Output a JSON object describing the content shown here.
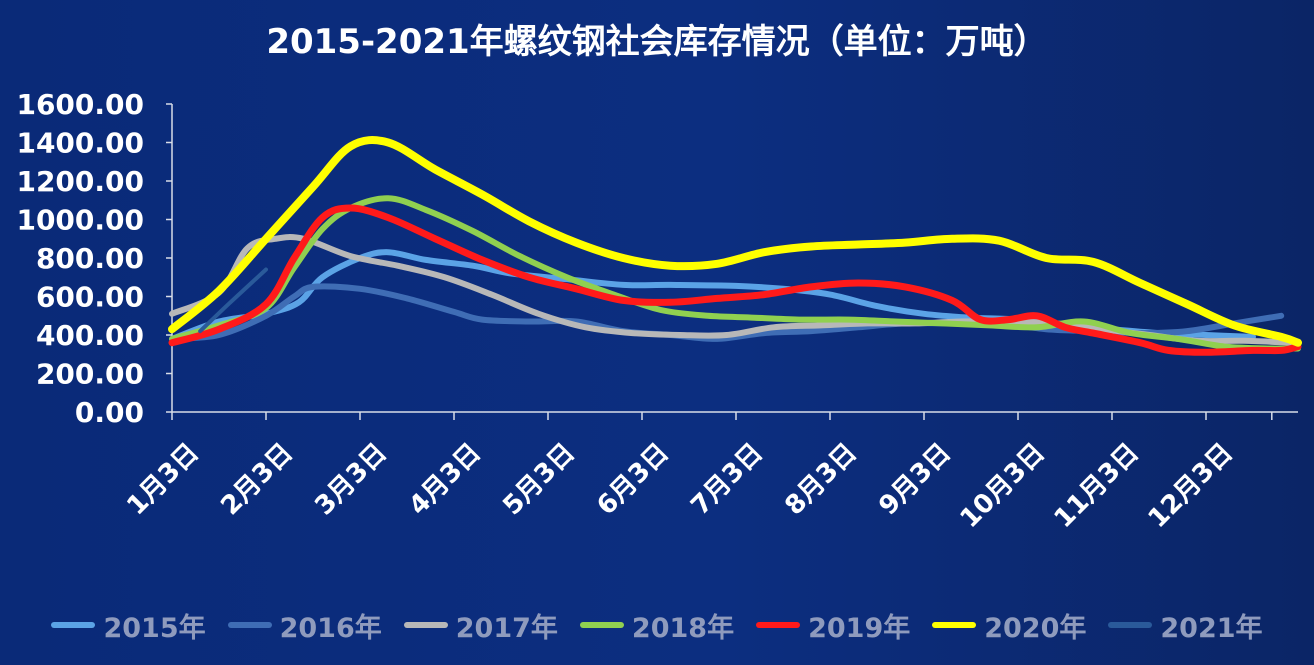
{
  "chart_data": {
    "type": "line",
    "title": "2015-2021年螺纹钢社会库存情况（单位：万吨）",
    "xlabel": "",
    "ylabel": "",
    "ylim": [
      0,
      1600
    ],
    "yticks": [
      "0.00",
      "200.00",
      "400.00",
      "600.00",
      "800.00",
      "1000.00",
      "1200.00",
      "1400.00",
      "1600.00"
    ],
    "categories": [
      "1月3日",
      "2月3日",
      "3月3日",
      "4月3日",
      "5月3日",
      "6月3日",
      "7月3日",
      "8月3日",
      "9月3日",
      "10月3日",
      "11月3日",
      "12月3日"
    ],
    "grid": false,
    "legend": "bottom",
    "series": [
      {
        "name": "2015年",
        "color": "#5ba3e6",
        "width": 6,
        "points": [
          [
            0,
            380
          ],
          [
            0.5,
            470
          ],
          [
            1.0,
            510
          ],
          [
            1.35,
            570
          ],
          [
            1.6,
            700
          ],
          [
            2.0,
            800
          ],
          [
            2.3,
            830
          ],
          [
            2.7,
            790
          ],
          [
            3.2,
            760
          ],
          [
            3.6,
            720
          ],
          [
            4.2,
            690
          ],
          [
            4.8,
            660
          ],
          [
            5.3,
            660
          ],
          [
            6.0,
            655
          ],
          [
            6.5,
            640
          ],
          [
            7.0,
            610
          ],
          [
            7.5,
            550
          ],
          [
            8.0,
            510
          ],
          [
            8.5,
            490
          ],
          [
            9.0,
            480
          ],
          [
            9.5,
            450
          ],
          [
            10.0,
            430
          ],
          [
            10.5,
            410
          ],
          [
            11.0,
            400
          ],
          [
            11.5,
            390
          ]
        ]
      },
      {
        "name": "2016年",
        "color": "#3f6db5",
        "width": 6,
        "points": [
          [
            0,
            380
          ],
          [
            0.5,
            400
          ],
          [
            1.0,
            500
          ],
          [
            1.3,
            600
          ],
          [
            1.5,
            650
          ],
          [
            2.0,
            640
          ],
          [
            2.5,
            590
          ],
          [
            3.0,
            520
          ],
          [
            3.3,
            480
          ],
          [
            3.8,
            470
          ],
          [
            4.3,
            470
          ],
          [
            4.8,
            420
          ],
          [
            5.3,
            400
          ],
          [
            5.8,
            380
          ],
          [
            6.3,
            410
          ],
          [
            6.8,
            420
          ],
          [
            7.3,
            440
          ],
          [
            7.8,
            460
          ],
          [
            8.3,
            460
          ],
          [
            8.8,
            460
          ],
          [
            9.3,
            430
          ],
          [
            9.8,
            420
          ],
          [
            10.3,
            410
          ],
          [
            10.8,
            420
          ],
          [
            11.3,
            460
          ],
          [
            11.8,
            500
          ]
        ]
      },
      {
        "name": "2017年",
        "color": "#b8b8b8",
        "width": 6,
        "points": [
          [
            0,
            510
          ],
          [
            0.5,
            620
          ],
          [
            0.8,
            850
          ],
          [
            1.1,
            900
          ],
          [
            1.4,
            900
          ],
          [
            1.9,
            810
          ],
          [
            2.4,
            760
          ],
          [
            2.9,
            700
          ],
          [
            3.4,
            610
          ],
          [
            3.9,
            510
          ],
          [
            4.4,
            440
          ],
          [
            4.9,
            410
          ],
          [
            5.4,
            400
          ],
          [
            5.9,
            400
          ],
          [
            6.4,
            440
          ],
          [
            6.9,
            450
          ],
          [
            7.4,
            460
          ],
          [
            7.9,
            460
          ],
          [
            8.4,
            470
          ],
          [
            8.9,
            470
          ],
          [
            9.4,
            460
          ],
          [
            9.9,
            430
          ],
          [
            10.4,
            400
          ],
          [
            10.9,
            370
          ],
          [
            11.4,
            370
          ],
          [
            11.9,
            360
          ]
        ]
      },
      {
        "name": "2018年",
        "color": "#90d050",
        "width": 6,
        "points": [
          [
            0,
            380
          ],
          [
            0.5,
            450
          ],
          [
            1.0,
            540
          ],
          [
            1.3,
            750
          ],
          [
            1.6,
            950
          ],
          [
            1.9,
            1060
          ],
          [
            2.3,
            1110
          ],
          [
            2.7,
            1050
          ],
          [
            3.2,
            940
          ],
          [
            3.7,
            810
          ],
          [
            4.2,
            700
          ],
          [
            4.7,
            610
          ],
          [
            5.2,
            530
          ],
          [
            5.7,
            500
          ],
          [
            6.2,
            490
          ],
          [
            6.7,
            480
          ],
          [
            7.2,
            480
          ],
          [
            7.7,
            470
          ],
          [
            8.2,
            460
          ],
          [
            8.7,
            450
          ],
          [
            9.2,
            440
          ],
          [
            9.7,
            470
          ],
          [
            10.2,
            410
          ],
          [
            10.7,
            380
          ],
          [
            11.2,
            340
          ],
          [
            11.7,
            330
          ],
          [
            12.0,
            330
          ]
        ]
      },
      {
        "name": "2019年",
        "color": "#ff1a1a",
        "width": 7,
        "points": [
          [
            0,
            360
          ],
          [
            0.5,
            430
          ],
          [
            1.0,
            560
          ],
          [
            1.3,
            800
          ],
          [
            1.6,
            1010
          ],
          [
            1.9,
            1060
          ],
          [
            2.3,
            1010
          ],
          [
            2.8,
            900
          ],
          [
            3.3,
            790
          ],
          [
            3.8,
            700
          ],
          [
            4.3,
            640
          ],
          [
            4.8,
            580
          ],
          [
            5.3,
            570
          ],
          [
            5.8,
            590
          ],
          [
            6.3,
            610
          ],
          [
            6.8,
            650
          ],
          [
            7.3,
            670
          ],
          [
            7.8,
            650
          ],
          [
            8.3,
            580
          ],
          [
            8.6,
            480
          ],
          [
            8.9,
            480
          ],
          [
            9.2,
            500
          ],
          [
            9.5,
            440
          ],
          [
            9.8,
            410
          ],
          [
            10.3,
            360
          ],
          [
            10.6,
            320
          ],
          [
            11.0,
            310
          ],
          [
            11.5,
            320
          ],
          [
            11.8,
            320
          ],
          [
            12.0,
            340
          ]
        ]
      },
      {
        "name": "2020年",
        "color": "#ffff00",
        "width": 8,
        "points": [
          [
            0,
            430
          ],
          [
            0.5,
            630
          ],
          [
            1.0,
            900
          ],
          [
            1.5,
            1170
          ],
          [
            1.9,
            1380
          ],
          [
            2.3,
            1400
          ],
          [
            2.8,
            1260
          ],
          [
            3.3,
            1130
          ],
          [
            3.8,
            990
          ],
          [
            4.3,
            880
          ],
          [
            4.8,
            800
          ],
          [
            5.3,
            760
          ],
          [
            5.8,
            770
          ],
          [
            6.3,
            830
          ],
          [
            6.8,
            860
          ],
          [
            7.3,
            870
          ],
          [
            7.8,
            880
          ],
          [
            8.3,
            900
          ],
          [
            8.8,
            890
          ],
          [
            9.3,
            800
          ],
          [
            9.8,
            780
          ],
          [
            10.3,
            670
          ],
          [
            10.8,
            560
          ],
          [
            11.3,
            450
          ],
          [
            11.8,
            390
          ],
          [
            12.0,
            360
          ]
        ]
      },
      {
        "name": "2021年",
        "color": "#2a5a9a",
        "width": 4,
        "points": [
          [
            0.3,
            420
          ],
          [
            0.6,
            560
          ],
          [
            1.0,
            740
          ]
        ]
      }
    ]
  }
}
